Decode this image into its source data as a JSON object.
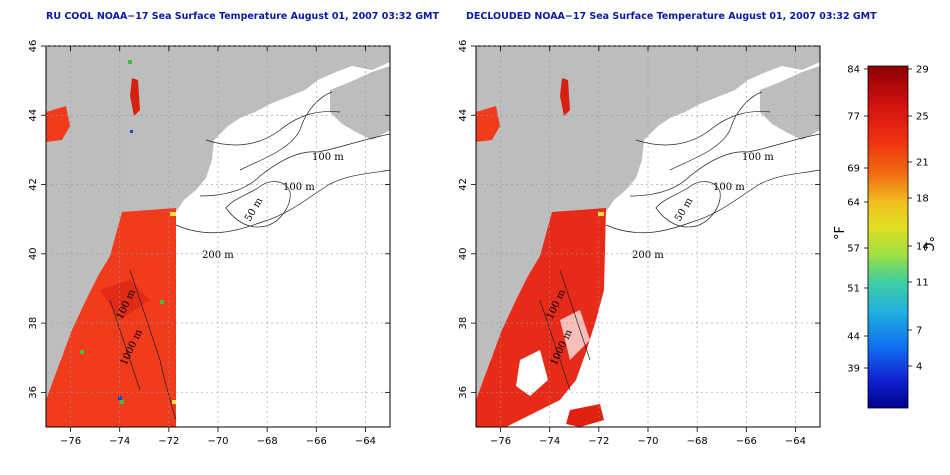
{
  "panels": [
    {
      "title": "RU COOL NOAA−17 Sea Surface Temperature August 01, 2007 03:32 GMT",
      "variant": "raw"
    },
    {
      "title": "DECLOUDED NOAA−17 Sea Surface Temperature August 01, 2007 03:32 GMT",
      "variant": "declouded"
    }
  ],
  "map_axes": {
    "x_ticks": [
      "−76",
      "−74",
      "−72",
      "−70",
      "−68",
      "−66",
      "−64"
    ],
    "y_ticks": [
      "36",
      "38",
      "40",
      "42",
      "44",
      "46"
    ],
    "contour_labels": [
      "100 m",
      "100 m",
      "50 m",
      "200 m",
      "100 m",
      "1000 m"
    ]
  },
  "colorbar": {
    "fahrenheit_label": "°F",
    "celsius_label": "°C",
    "fahrenheit_ticks": [
      "84",
      "77",
      "69",
      "64",
      "57",
      "51",
      "44",
      "39"
    ],
    "celsius_ticks": [
      "29",
      "25",
      "21",
      "18",
      "14",
      "11",
      "7",
      "4"
    ],
    "colors": [
      "#8a0000",
      "#d01010",
      "#f03010",
      "#f07010",
      "#f0c020",
      "#e0e020",
      "#a0e040",
      "#40d0a0",
      "#20b0e0",
      "#1070f0",
      "#1020d0",
      "#00008a"
    ]
  },
  "colors": {
    "land": "#bdbdbd",
    "ocean": "#ffffff",
    "sst_warm": "#f03c1c",
    "title": "#0a1aa8"
  }
}
